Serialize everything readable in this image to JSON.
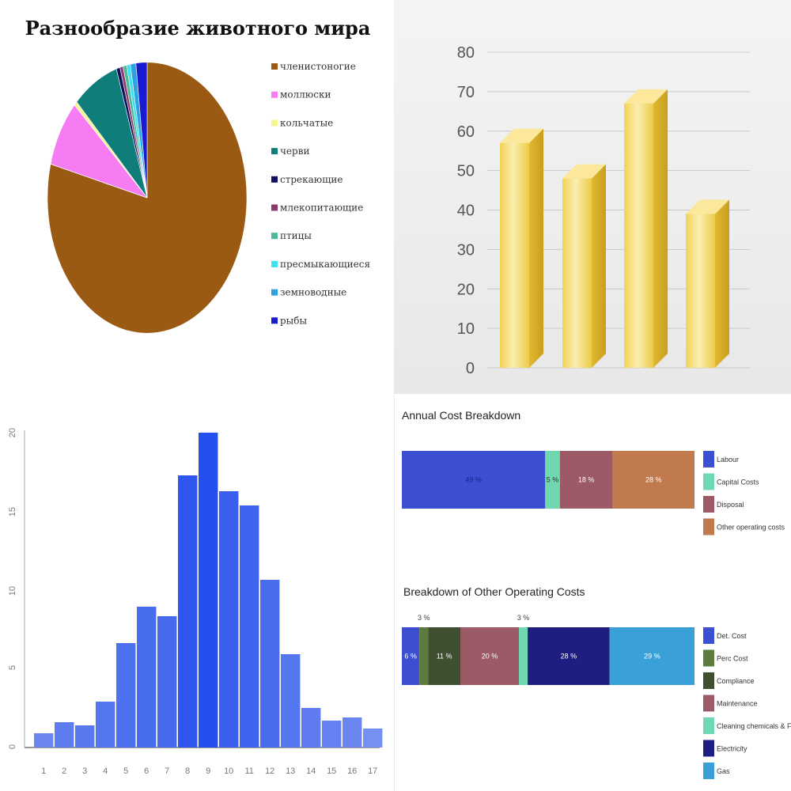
{
  "chart_data": [
    {
      "type": "pie",
      "title": "Разнообразие животного мира",
      "slices": [
        {
          "label": "членистоногие",
          "value": 79.0,
          "color": "#9b5a14"
        },
        {
          "label": "моллюски",
          "value": 8.0,
          "color": "#f57cf2"
        },
        {
          "label": "кольчатые",
          "value": 0.5,
          "color": "#f5f590"
        },
        {
          "label": "черви",
          "value": 7.5,
          "color": "#0f7d7a"
        },
        {
          "label": "стрекающие",
          "value": 0.6,
          "color": "#101060"
        },
        {
          "label": "млекопитающие",
          "value": 0.5,
          "color": "#8b3a6a"
        },
        {
          "label": "птицы",
          "value": 0.6,
          "color": "#4db89a"
        },
        {
          "label": "пресмыкающиеся",
          "value": 0.6,
          "color": "#3fe0f0"
        },
        {
          "label": "земноводные",
          "value": 0.9,
          "color": "#2fa0e0"
        },
        {
          "label": "рыбы",
          "value": 1.8,
          "color": "#1a1ad0"
        }
      ]
    },
    {
      "type": "bar",
      "title": "",
      "xlabel": "",
      "ylabel": "",
      "ylim": [
        0,
        80
      ],
      "ytick_labels": [
        "0",
        "10",
        "20",
        "30",
        "40",
        "50",
        "60",
        "70",
        "80"
      ],
      "values": [
        57,
        48,
        67,
        39
      ],
      "bar_color": "#f0cc40"
    },
    {
      "type": "bar",
      "title": "",
      "xlabel": "",
      "ylabel": "",
      "ylim": [
        0,
        20
      ],
      "ytick_labels": [
        "0",
        "5",
        "10",
        "15",
        "20"
      ],
      "categories": [
        "1",
        "2",
        "3",
        "4",
        "5",
        "6",
        "7",
        "8",
        "9",
        "10",
        "11",
        "12",
        "13",
        "14",
        "15",
        "16",
        "17"
      ],
      "values": [
        0.9,
        1.6,
        1.4,
        2.9,
        6.6,
        8.9,
        8.3,
        17.2,
        19.9,
        16.2,
        15.3,
        10.6,
        5.9,
        2.5,
        1.7,
        1.9,
        1.2
      ],
      "bar_colors": [
        "#6a84f0",
        "#5e7cf0",
        "#5b79ee",
        "#5476ee",
        "#4d70ee",
        "#486cee",
        "#4669ee",
        "#2f56ee",
        "#2550f0",
        "#3a5fee",
        "#3e63ee",
        "#4a6dee",
        "#5476ee",
        "#5e7cf0",
        "#6580f0",
        "#6a84f0",
        "#7390f2"
      ]
    },
    {
      "type": "bar",
      "orientation": "horizontal-stacked",
      "title": "Annual Cost Breakdown",
      "series": [
        {
          "name": "Labour",
          "value": 49,
          "label": "49 %",
          "color": "#3b4fd0"
        },
        {
          "name": "Capital Costs",
          "value": 5,
          "label": "5 %",
          "color": "#6fd8b0"
        },
        {
          "name": "Disposal",
          "value": 18,
          "label": "18 %",
          "color": "#9c5a66"
        },
        {
          "name": "Other operating costs",
          "value": 28,
          "label": "28 %",
          "color": "#c07a4e"
        }
      ]
    },
    {
      "type": "bar",
      "orientation": "horizontal-stacked",
      "title": "Breakdown of Other Operating Costs",
      "series": [
        {
          "name": "Det. Cost",
          "value": 6,
          "label": "6 %",
          "color": "#3b4fd0"
        },
        {
          "name": "Perc Cost",
          "value": 3,
          "label": "3 %",
          "color": "#5e7a3e"
        },
        {
          "name": "Compliance",
          "value": 11,
          "label": "11 %",
          "color": "#3e5030"
        },
        {
          "name": "Maintenance",
          "value": 20,
          "label": "20 %",
          "color": "#9c5a66"
        },
        {
          "name": "Cleaning chemicals & Filters",
          "value": 3,
          "label": "3 %",
          "color": "#6fd8b0"
        },
        {
          "name": "Electricity",
          "value": 28,
          "label": "28 %",
          "color": "#1e1e80"
        },
        {
          "name": "Gas",
          "value": 29,
          "label": "29 %",
          "color": "#3aa0d8"
        }
      ]
    }
  ]
}
